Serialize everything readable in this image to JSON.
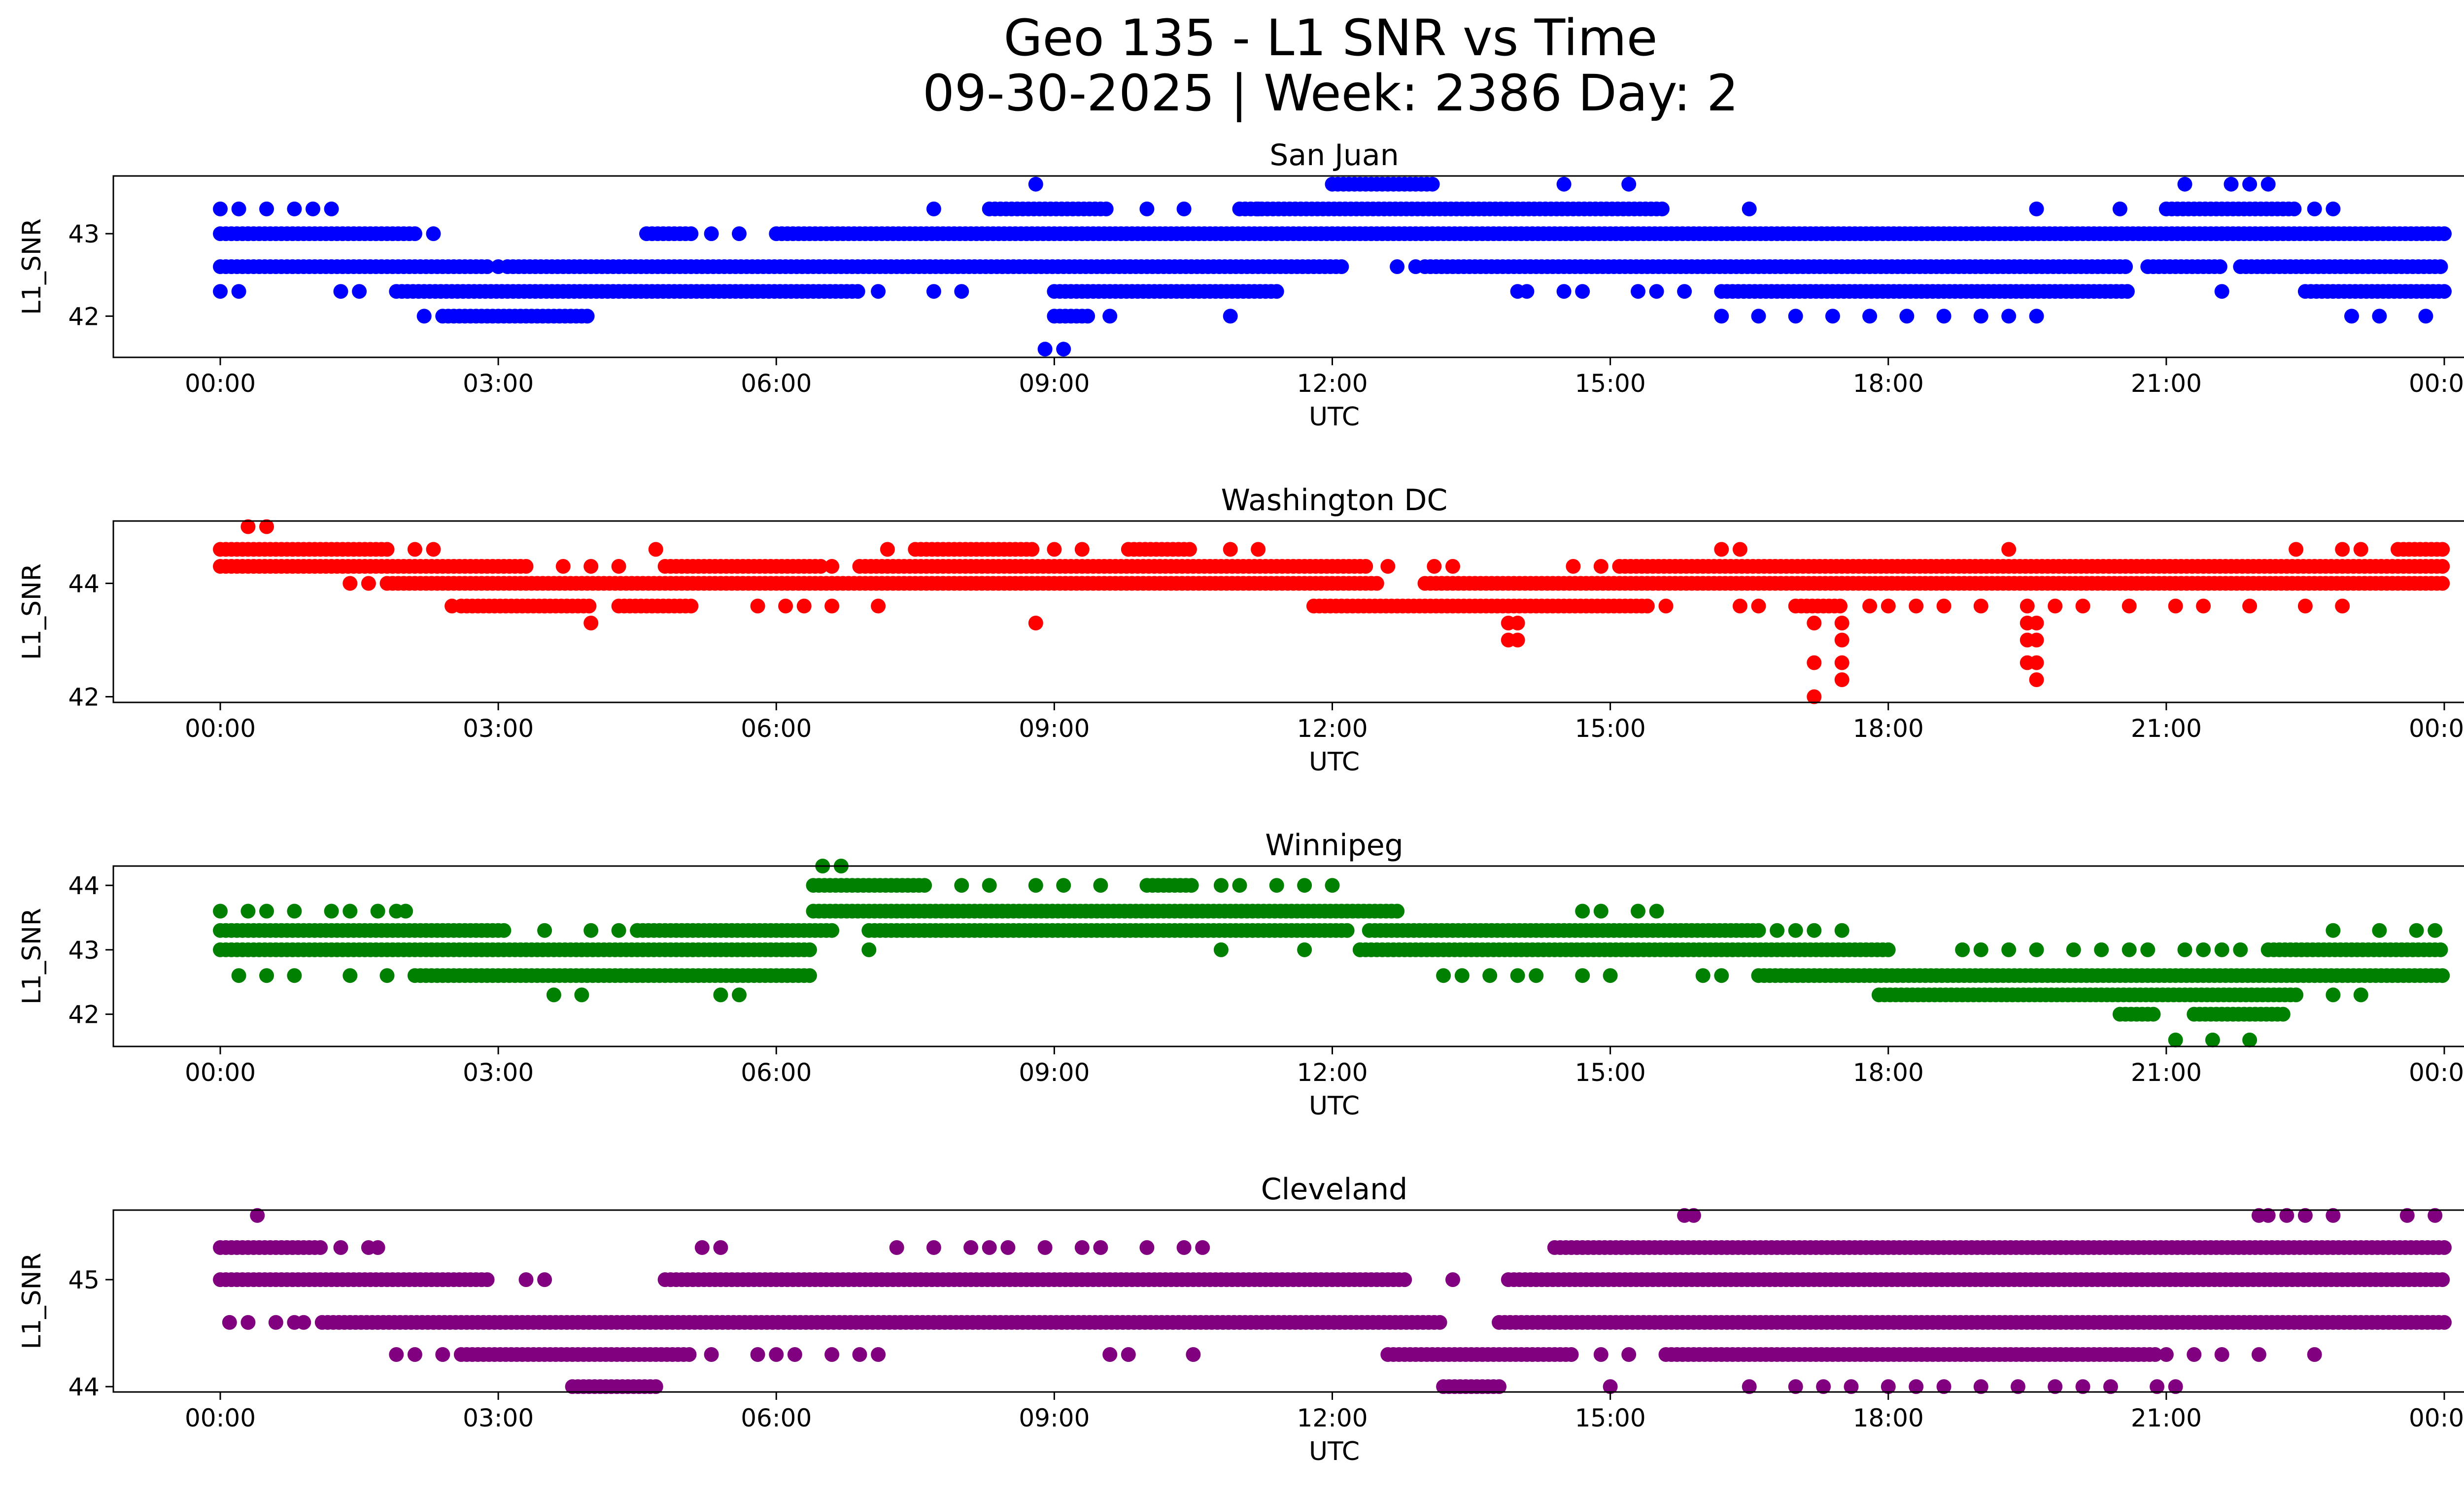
{
  "figure": {
    "title_line1": "Geo 135 - L1 SNR vs Time",
    "title_line2": "09-30-2025 | Week: 2386 Day: 2"
  },
  "chart_data": [
    {
      "type": "scatter",
      "title": "San Juan",
      "xlabel": "UTC",
      "ylabel": "L1_SNR",
      "color": "#0000ff",
      "x_ticks": [
        "00:00",
        "03:00",
        "06:00",
        "09:00",
        "12:00",
        "15:00",
        "18:00",
        "21:00",
        "00:00"
      ],
      "x_range_hours": [
        0,
        24
      ],
      "ylim": [
        41.5,
        43.7
      ],
      "y_ticks": [
        42,
        43
      ],
      "grid": false,
      "snr_levels": [
        41.6,
        42.0,
        42.3,
        42.6,
        43.0,
        43.3,
        43.6
      ],
      "observations": [
        {
          "level": 43.0,
          "dense": [
            [
              0.0,
              2.1
            ],
            [
              4.6,
              5.1
            ],
            [
              6.0,
              24.0
            ]
          ],
          "sparse": [
            0.3,
            2.3,
            5.3,
            5.6
          ]
        },
        {
          "level": 42.6,
          "dense": [
            [
              0.0,
              2.9
            ],
            [
              3.1,
              12.1
            ],
            [
              13.0,
              20.6
            ],
            [
              20.8,
              21.6
            ],
            [
              21.8,
              24.0
            ]
          ],
          "sparse": [
            3.0,
            12.7,
            12.9
          ]
        },
        {
          "level": 42.3,
          "dense": [
            [
              1.9,
              6.9
            ],
            [
              9.0,
              11.4
            ],
            [
              16.2,
              20.6
            ],
            [
              22.5,
              24.0
            ]
          ],
          "sparse": [
            0.0,
            0.2,
            1.3,
            1.5,
            7.1,
            7.7,
            8.0,
            14.0,
            14.1,
            14.5,
            14.7,
            15.3,
            15.5,
            15.8,
            21.6
          ]
        },
        {
          "level": 42.0,
          "dense": [
            [
              2.4,
              4.0
            ],
            [
              9.0,
              9.4
            ]
          ],
          "sparse": [
            2.2,
            9.6,
            10.9,
            16.2,
            16.6,
            17.0,
            17.4,
            17.8,
            18.2,
            18.6,
            19.0,
            19.3,
            19.6,
            23.0,
            23.3,
            23.8
          ]
        },
        {
          "level": 43.3,
          "dense": [
            [
              8.3,
              9.6
            ],
            [
              11.0,
              15.6
            ],
            [
              21.0,
              22.4
            ]
          ],
          "sparse": [
            0.0,
            0.2,
            0.5,
            0.8,
            1.0,
            1.2,
            7.7,
            10.0,
            10.4,
            11.2,
            16.5,
            19.6,
            20.5,
            22.6,
            22.8
          ]
        },
        {
          "level": 43.6,
          "dense": [
            [
              12.0,
              13.1
            ]
          ],
          "sparse": [
            8.8,
            14.5,
            15.2,
            21.2,
            21.7,
            21.9,
            22.1
          ]
        },
        {
          "level": 41.6,
          "dense": [],
          "sparse": [
            8.9,
            9.1
          ]
        }
      ]
    },
    {
      "type": "scatter",
      "title": "Washington DC",
      "xlabel": "UTC",
      "ylabel": "L1_SNR",
      "color": "#ff0000",
      "x_ticks": [
        "00:00",
        "03:00",
        "06:00",
        "09:00",
        "12:00",
        "15:00",
        "18:00",
        "21:00",
        "00:00"
      ],
      "x_range_hours": [
        0,
        24
      ],
      "ylim": [
        41.9,
        45.1
      ],
      "y_ticks": [
        42,
        44
      ],
      "grid": false,
      "snr_levels": [
        42.0,
        42.3,
        42.6,
        43.0,
        43.3,
        43.6,
        44.0,
        44.3,
        44.6,
        45.0
      ],
      "observations": [
        {
          "level": 44.6,
          "dense": [
            [
              0.0,
              1.8
            ],
            [
              7.5,
              8.8
            ],
            [
              9.8,
              10.5
            ],
            [
              23.5,
              24.0
            ]
          ],
          "sparse": [
            2.1,
            2.3,
            4.7,
            7.2,
            9.0,
            9.3,
            10.9,
            11.2,
            16.2,
            16.4,
            19.3,
            22.4,
            22.9,
            23.1
          ]
        },
        {
          "level": 44.3,
          "dense": [
            [
              0.0,
              3.3
            ],
            [
              4.8,
              6.5
            ],
            [
              6.9,
              12.4
            ],
            [
              15.1,
              24.0
            ]
          ],
          "sparse": [
            3.7,
            4.0,
            4.3,
            6.6,
            12.6,
            13.1,
            13.3,
            14.6,
            14.9
          ]
        },
        {
          "level": 44.0,
          "dense": [
            [
              1.8,
              12.5
            ],
            [
              13.0,
              24.0
            ]
          ],
          "sparse": [
            1.4,
            1.6
          ]
        },
        {
          "level": 43.6,
          "dense": [
            [
              2.6,
              4.0
            ],
            [
              4.3,
              5.1
            ],
            [
              11.8,
              15.4
            ],
            [
              17.0,
              17.5
            ]
          ],
          "sparse": [
            2.5,
            3.5,
            5.8,
            6.1,
            6.3,
            6.6,
            7.1,
            15.6,
            16.4,
            16.6,
            17.8,
            18.0,
            18.3,
            18.6,
            19.0,
            19.5,
            19.8,
            20.1,
            20.6,
            21.1,
            21.4,
            21.9,
            22.5,
            22.9
          ]
        },
        {
          "level": 43.3,
          "dense": [],
          "sparse": [
            4.0,
            8.8,
            13.9,
            14.0,
            17.2,
            17.5,
            19.5,
            19.6
          ]
        },
        {
          "level": 43.0,
          "dense": [],
          "sparse": [
            13.9,
            14.0,
            17.5,
            19.5,
            19.6
          ]
        },
        {
          "level": 42.6,
          "dense": [],
          "sparse": [
            17.2,
            17.5,
            19.5,
            19.6
          ]
        },
        {
          "level": 42.3,
          "dense": [],
          "sparse": [
            17.5,
            19.6
          ]
        },
        {
          "level": 42.0,
          "dense": [],
          "sparse": [
            17.2
          ]
        },
        {
          "level": 45.0,
          "dense": [],
          "sparse": [
            0.3,
            0.5
          ]
        }
      ]
    },
    {
      "type": "scatter",
      "title": "Winnipeg",
      "xlabel": "UTC",
      "ylabel": "L1_SNR",
      "color": "#008000",
      "x_ticks": [
        "00:00",
        "03:00",
        "06:00",
        "09:00",
        "12:00",
        "15:00",
        "18:00",
        "21:00",
        "00:00"
      ],
      "x_range_hours": [
        0,
        24
      ],
      "ylim": [
        41.5,
        44.3
      ],
      "y_ticks": [
        42,
        43,
        44
      ],
      "grid": false,
      "snr_levels": [
        41.6,
        42.0,
        42.3,
        42.6,
        43.0,
        43.3,
        43.6,
        44.0,
        44.3
      ],
      "observations": [
        {
          "level": 43.6,
          "dense": [
            [
              6.4,
              12.7
            ]
          ],
          "sparse": [
            0.0,
            0.3,
            0.5,
            0.8,
            1.2,
            1.4,
            1.7,
            1.9,
            2.0,
            14.7,
            14.9,
            15.3,
            15.5
          ]
        },
        {
          "level": 43.3,
          "dense": [
            [
              0.0,
              3.1
            ],
            [
              4.5,
              6.6
            ],
            [
              7.0,
              12.2
            ],
            [
              12.4,
              16.6
            ]
          ],
          "sparse": [
            3.5,
            4.0,
            4.3,
            4.5,
            16.8,
            17.0,
            17.2,
            17.5,
            22.8,
            23.3,
            23.7,
            23.9
          ]
        },
        {
          "level": 43.0,
          "dense": [
            [
              0.0,
              6.4
            ],
            [
              12.3,
              18.0
            ],
            [
              22.1,
              24.0
            ]
          ],
          "sparse": [
            7.0,
            10.8,
            11.7,
            12.3,
            18.8,
            19.0,
            19.3,
            19.6,
            20.0,
            20.3,
            20.6,
            20.8,
            21.2,
            21.4,
            21.6,
            21.8
          ]
        },
        {
          "level": 42.6,
          "dense": [
            [
              2.1,
              6.4
            ],
            [
              16.6,
              24.0
            ]
          ],
          "sparse": [
            0.2,
            0.5,
            0.8,
            1.4,
            1.8,
            13.2,
            13.4,
            13.7,
            14.0,
            14.2,
            14.7,
            15.0,
            16.0,
            16.2
          ]
        },
        {
          "level": 42.3,
          "dense": [
            [
              17.9,
              22.4
            ]
          ],
          "sparse": [
            3.6,
            3.9,
            5.4,
            5.6,
            22.8,
            23.1
          ]
        },
        {
          "level": 42.0,
          "dense": [
            [
              20.5,
              20.9
            ],
            [
              21.3,
              22.3
            ]
          ],
          "sparse": []
        },
        {
          "level": 41.6,
          "dense": [],
          "sparse": [
            21.1,
            21.5,
            21.9
          ]
        },
        {
          "level": 44.0,
          "dense": [
            [
              6.4,
              7.6
            ],
            [
              10.0,
              10.5
            ]
          ],
          "sparse": [
            8.0,
            8.3,
            8.8,
            9.1,
            9.5,
            10.8,
            11.0,
            11.4,
            11.7,
            12.0
          ]
        },
        {
          "level": 44.3,
          "dense": [],
          "sparse": [
            6.5,
            6.7
          ]
        }
      ]
    },
    {
      "type": "scatter",
      "title": "Cleveland",
      "xlabel": "UTC",
      "ylabel": "L1_SNR",
      "color": "#800080",
      "x_ticks": [
        "00:00",
        "03:00",
        "06:00",
        "09:00",
        "12:00",
        "15:00",
        "18:00",
        "21:00",
        "00:00"
      ],
      "x_range_hours": [
        0,
        24
      ],
      "ylim": [
        43.95,
        45.65
      ],
      "y_ticks": [
        44,
        45
      ],
      "grid": false,
      "snr_levels": [
        44.0,
        44.3,
        44.6,
        45.0,
        45.3,
        45.6
      ],
      "observations": [
        {
          "level": 45.6,
          "dense": [],
          "sparse": [
            0.4,
            15.8,
            15.9,
            22.0,
            22.1,
            22.3,
            22.5,
            22.8,
            23.6,
            23.9
          ]
        },
        {
          "level": 45.3,
          "dense": [
            [
              0.0,
              1.1
            ],
            [
              14.4,
              24.0
            ]
          ],
          "sparse": [
            1.3,
            1.6,
            1.7,
            5.2,
            5.4,
            7.3,
            7.7,
            8.1,
            8.3,
            8.5,
            8.9,
            9.3,
            9.5,
            10.0,
            10.4,
            10.6
          ]
        },
        {
          "level": 45.0,
          "dense": [
            [
              0.0,
              2.9
            ],
            [
              4.8,
              12.8
            ],
            [
              13.9,
              24.0
            ]
          ],
          "sparse": [
            3.3,
            3.5,
            13.3
          ]
        },
        {
          "level": 44.6,
          "dense": [
            [
              1.1,
              13.2
            ],
            [
              13.8,
              24.0
            ]
          ],
          "sparse": [
            0.1,
            0.3,
            0.6,
            0.8,
            0.9
          ]
        },
        {
          "level": 44.3,
          "dense": [
            [
              2.6,
              5.1
            ],
            [
              12.6,
              14.6
            ],
            [
              15.6,
              20.9
            ]
          ],
          "sparse": [
            1.9,
            2.1,
            2.4,
            5.3,
            5.8,
            6.0,
            6.2,
            6.6,
            6.9,
            7.1,
            9.6,
            9.8,
            10.5,
            14.9,
            15.2,
            21.0,
            21.3,
            21.6,
            22.0,
            22.6
          ]
        },
        {
          "level": 44.0,
          "dense": [
            [
              3.8,
              4.7
            ],
            [
              13.2,
              13.8
            ]
          ],
          "sparse": [
            15.0,
            16.5,
            17.0,
            17.3,
            17.6,
            18.0,
            18.3,
            18.6,
            19.0,
            19.4,
            19.8,
            20.1,
            20.4,
            20.9,
            21.1
          ]
        }
      ]
    }
  ]
}
